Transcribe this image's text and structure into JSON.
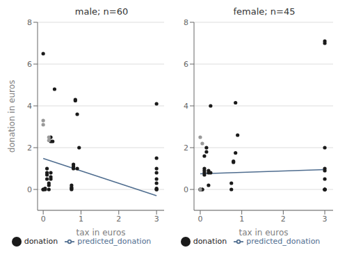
{
  "chart_data": [
    {
      "type": "scatter",
      "title": "male; n=60",
      "x_label": "tax in euros",
      "y_label": "donation in euros",
      "xlim": [
        -0.15,
        3.2
      ],
      "ylim": [
        -1,
        8
      ],
      "xticks": [
        0,
        1,
        2,
        3
      ],
      "yticks": [
        0,
        2,
        4,
        6,
        8
      ],
      "grid": "y",
      "legend": "bottom",
      "series": [
        {
          "name": "predicted_donation",
          "type": "line",
          "color": "#4f6d8f",
          "x": [
            0,
            3
          ],
          "values": [
            1.48,
            -0.3
          ]
        },
        {
          "name": "donation",
          "type": "scatter",
          "color": "#1a1a1a",
          "x": [
            0.0,
            0.0,
            0.05,
            0.05,
            0.1,
            0.1,
            0.1,
            0.1,
            0.15,
            0.15,
            0.15,
            0.2,
            0.2,
            0.2,
            0.2,
            0.2,
            0.25,
            0.3,
            0.0,
            0.75,
            0.75,
            0.75,
            0.75,
            0.8,
            0.8,
            0.8,
            0.85,
            0.85,
            0.9,
            0.9,
            0.95,
            3.0,
            3.0,
            3.0,
            3.0,
            3.0,
            3.0,
            3.0,
            3.0,
            3.0
          ],
          "values": [
            0.0,
            0.0,
            0.0,
            0.05,
            0.5,
            0.7,
            0.8,
            1.0,
            0.0,
            0.2,
            0.3,
            0.5,
            0.6,
            0.8,
            2.3,
            2.5,
            2.3,
            4.8,
            6.5,
            0.0,
            0.05,
            0.1,
            0.2,
            1.0,
            1.1,
            1.2,
            4.25,
            4.3,
            1.0,
            3.6,
            2.0,
            0.0,
            0.0,
            0.05,
            0.3,
            0.5,
            0.8,
            1.0,
            1.5,
            4.1
          ]
        },
        {
          "type": "scatter",
          "color": "#999999",
          "x": [
            0.0,
            0.0,
            0.15,
            0.15
          ],
          "values": [
            3.1,
            3.3,
            2.35,
            2.5
          ]
        }
      ]
    },
    {
      "type": "scatter",
      "title": "female; n=45",
      "x_label": "tax in euros",
      "xlim": [
        -0.15,
        3.2
      ],
      "ylim": [
        -1,
        8
      ],
      "xticks": [
        0,
        1,
        2,
        3
      ],
      "yticks": [
        0,
        2,
        4,
        6,
        8
      ],
      "grid": "y",
      "legend": "bottom",
      "series": [
        {
          "name": "predicted_donation",
          "type": "line",
          "color": "#4f6d8f",
          "x": [
            0,
            3
          ],
          "values": [
            0.75,
            0.95
          ]
        },
        {
          "name": "donation",
          "type": "scatter",
          "color": "#1a1a1a",
          "x": [
            0.0,
            0.0,
            0.05,
            0.05,
            0.1,
            0.1,
            0.1,
            0.1,
            0.1,
            0.15,
            0.15,
            0.2,
            0.2,
            0.2,
            0.25,
            0.25,
            0.75,
            0.75,
            0.8,
            0.8,
            0.85,
            0.85,
            0.9,
            3.0,
            3.0,
            3.0,
            3.0,
            3.0,
            3.0,
            3.0,
            3.0,
            3.0,
            3.0
          ],
          "values": [
            0.0,
            0.0,
            0.0,
            0.0,
            0.7,
            0.8,
            0.9,
            1.0,
            1.6,
            1.8,
            2.0,
            0.2,
            0.8,
            0.9,
            0.8,
            4.0,
            0.0,
            0.3,
            1.3,
            1.35,
            1.75,
            4.15,
            2.6,
            0.0,
            0.0,
            0.0,
            0.0,
            0.5,
            0.9,
            1.0,
            2.0,
            7.0,
            7.1
          ]
        },
        {
          "type": "scatter",
          "color": "#999999",
          "x": [
            0.0,
            0.05,
            0.0
          ],
          "values": [
            2.5,
            2.2,
            0.0
          ]
        }
      ]
    }
  ]
}
